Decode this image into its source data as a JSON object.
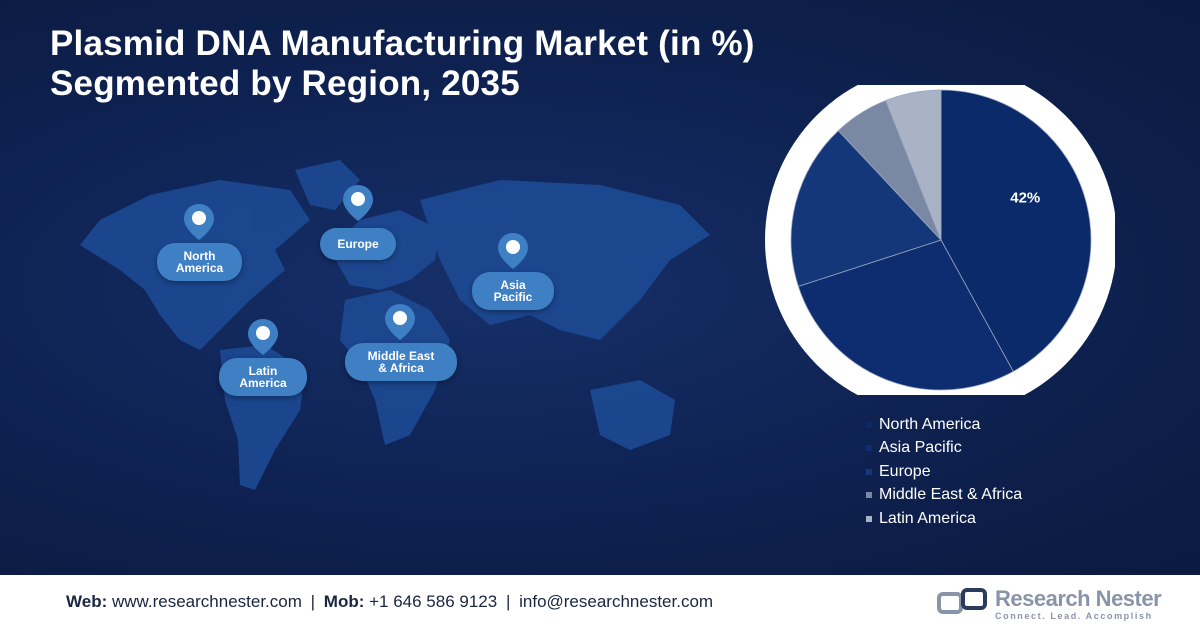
{
  "title_lines": [
    "Plasmid DNA Manufacturing Market (in %)",
    "Segmented by Region, 2035"
  ],
  "map_pins": [
    {
      "label": "North\nAmerica",
      "icon": "location-pin-icon"
    },
    {
      "label": "Europe",
      "icon": "location-pin-icon"
    },
    {
      "label": "Asia\nPacific",
      "icon": "location-pin-icon"
    },
    {
      "label": "Latin\nAmerica",
      "icon": "location-pin-icon"
    },
    {
      "label": "Middle East\n& Africa",
      "icon": "location-pin-icon"
    }
  ],
  "chart_data": {
    "type": "pie",
    "title": "Plasmid DNA Manufacturing Market (in %) Segmented by Region, 2035",
    "categories": [
      "North America",
      "Asia Pacific",
      "Europe",
      "Middle East & Africa",
      "Latin America"
    ],
    "values": [
      42,
      28,
      18,
      6,
      6
    ],
    "data_labels": [
      "42%",
      "",
      "",
      "",
      ""
    ],
    "colors": [
      "#0b2a6a",
      "#0d2d70",
      "#133778",
      "#7b88a3",
      "#aab2c5"
    ],
    "legend_position": "bottom-right"
  },
  "footer": {
    "web_label": "Web:",
    "web_value": "www.researchnester.com",
    "mob_label": "Mob:",
    "mob_value": "+1 646 586 9123",
    "email_value": "info@researchnester.com",
    "separator": "|"
  },
  "logo": {
    "name": "Research Nester",
    "tagline": "Connect. Lead. Accomplish"
  },
  "colors": {
    "background": "#0e2150",
    "footer_background": "#ffffff",
    "pin_bubble": "#3f7fc4"
  }
}
